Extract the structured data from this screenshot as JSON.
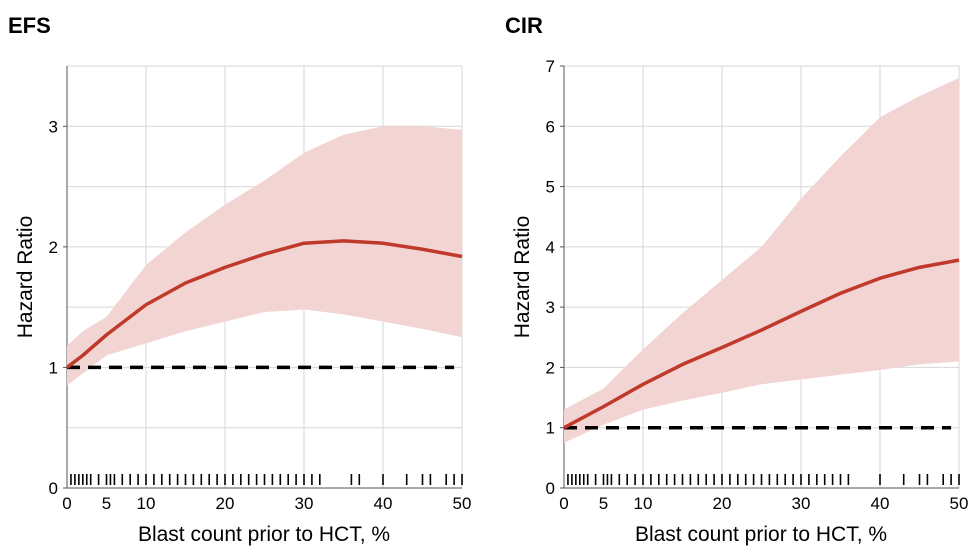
{
  "chart_data": [
    {
      "type": "line",
      "title": "EFS",
      "xlabel": "Blast count prior to HCT, %",
      "ylabel": "Hazard Ratio",
      "xlim": [
        0,
        50
      ],
      "ylim": [
        0,
        3.5
      ],
      "xticks": [
        0,
        5,
        10,
        20,
        30,
        40,
        50
      ],
      "yticks": [
        0,
        1,
        2,
        3
      ],
      "x_grid": [
        0,
        10,
        20,
        30,
        40,
        50
      ],
      "y_grid": [
        0,
        0.5,
        1,
        1.5,
        2,
        2.5,
        3,
        3.5
      ],
      "grid": true,
      "reference_line": 1,
      "series": [
        {
          "x": [
            0,
            2,
            5,
            10,
            15,
            20,
            25,
            30,
            35,
            40,
            45,
            50
          ],
          "y": [
            1.0,
            1.1,
            1.27,
            1.52,
            1.7,
            1.83,
            1.94,
            2.03,
            2.05,
            2.03,
            1.98,
            1.92
          ],
          "lower": [
            0.85,
            0.95,
            1.1,
            1.2,
            1.3,
            1.38,
            1.46,
            1.48,
            1.44,
            1.38,
            1.32,
            1.25
          ],
          "upper": [
            1.18,
            1.3,
            1.42,
            1.85,
            2.12,
            2.35,
            2.55,
            2.78,
            2.93,
            3.0,
            3.0,
            2.97
          ],
          "color": "#c0392b",
          "band_color": "#f2d4d2"
        }
      ],
      "rug_x": [
        0.5,
        1,
        1.5,
        2,
        2.5,
        3,
        4,
        5,
        5.5,
        6,
        7,
        8,
        9,
        10,
        11,
        12,
        13,
        14,
        15,
        16,
        17,
        18,
        19,
        20,
        21,
        22,
        23,
        24,
        25,
        26,
        27,
        28,
        29,
        30,
        31,
        32,
        36,
        37,
        40,
        43,
        45,
        46,
        48,
        49,
        50
      ]
    },
    {
      "type": "line",
      "title": "CIR",
      "xlabel": "Blast count prior to HCT, %",
      "ylabel": "Hazard Ratio",
      "xlim": [
        0,
        50
      ],
      "ylim": [
        0,
        7
      ],
      "xticks": [
        0,
        5,
        10,
        20,
        30,
        40,
        50
      ],
      "yticks": [
        0,
        1,
        2,
        3,
        4,
        5,
        6,
        7
      ],
      "x_grid": [
        0,
        10,
        20,
        30,
        40,
        50
      ],
      "y_grid": [
        0,
        1,
        2,
        3,
        4,
        5,
        6,
        7
      ],
      "grid": true,
      "reference_line": 1,
      "series": [
        {
          "x": [
            0,
            5,
            10,
            15,
            20,
            25,
            30,
            35,
            40,
            45,
            50
          ],
          "y": [
            1.0,
            1.35,
            1.72,
            2.05,
            2.33,
            2.62,
            2.93,
            3.23,
            3.48,
            3.66,
            3.78
          ],
          "lower": [
            0.75,
            1.05,
            1.3,
            1.45,
            1.58,
            1.72,
            1.8,
            1.88,
            1.96,
            2.05,
            2.1
          ],
          "upper": [
            1.3,
            1.65,
            2.3,
            2.9,
            3.45,
            4.0,
            4.8,
            5.5,
            6.15,
            6.5,
            6.8
          ],
          "color": "#c0392b",
          "band_color": "#f2d4d2"
        }
      ],
      "rug_x": [
        0.5,
        1,
        1.5,
        2,
        2.5,
        3,
        4,
        5,
        5.5,
        6,
        7,
        8,
        9,
        10,
        11,
        12,
        13,
        14,
        15,
        16,
        17,
        18,
        19,
        20,
        21,
        22,
        23,
        24,
        25,
        26,
        27,
        28,
        29,
        30,
        31,
        32,
        33,
        34,
        35,
        36,
        40,
        43,
        45,
        46,
        48,
        49,
        50
      ]
    }
  ]
}
